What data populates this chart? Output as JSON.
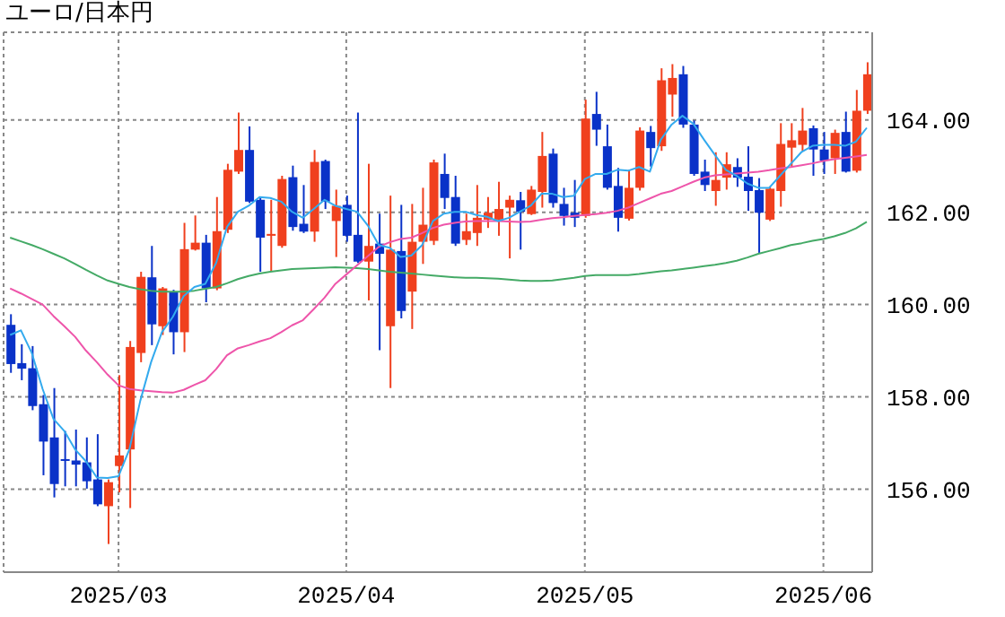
{
  "chart_data": {
    "type": "candlestick",
    "title": "ユーロ/日本円",
    "categories": [
      null,
      null,
      null,
      null,
      null,
      null,
      null,
      null,
      null,
      null,
      "2025/03",
      null,
      null,
      null,
      null,
      null,
      null,
      null,
      null,
      null,
      null,
      null,
      null,
      null,
      null,
      null,
      null,
      null,
      null,
      null,
      null,
      "2025/04",
      null,
      null,
      null,
      null,
      null,
      null,
      null,
      null,
      null,
      null,
      null,
      null,
      null,
      null,
      null,
      null,
      null,
      null,
      null,
      null,
      null,
      "2025/05",
      null,
      null,
      null,
      null,
      null,
      null,
      null,
      null,
      null,
      null,
      null,
      null,
      null,
      null,
      null,
      null,
      null,
      null,
      null,
      null,
      null,
      "2025/06",
      null,
      null,
      null,
      null
    ],
    "ohlc": [
      [
        159.56,
        159.79,
        158.52,
        158.71
      ],
      [
        158.73,
        159.14,
        158.36,
        158.61
      ],
      [
        158.62,
        159.1,
        157.71,
        157.8
      ],
      [
        157.84,
        158.04,
        156.3,
        157.03
      ],
      [
        157.12,
        158.19,
        155.82,
        156.11
      ],
      [
        156.65,
        157.26,
        156.06,
        156.62
      ],
      [
        156.62,
        157.29,
        156.06,
        156.53
      ],
      [
        156.58,
        157.12,
        156.01,
        156.17
      ],
      [
        156.21,
        157.19,
        155.63,
        155.67
      ],
      [
        155.63,
        156.21,
        154.81,
        156.15
      ],
      [
        156.5,
        158.47,
        155.93,
        156.73
      ],
      [
        156.86,
        159.21,
        155.59,
        159.08
      ],
      [
        158.95,
        160.71,
        158.75,
        160.6
      ],
      [
        160.59,
        161.27,
        159.12,
        159.57
      ],
      [
        159.53,
        160.38,
        159.34,
        160.35
      ],
      [
        160.28,
        160.32,
        158.92,
        159.4
      ],
      [
        159.4,
        161.77,
        158.97,
        161.2
      ],
      [
        161.19,
        161.93,
        161.17,
        161.34
      ],
      [
        161.34,
        161.51,
        160.05,
        160.35
      ],
      [
        160.35,
        162.33,
        160.31,
        161.59
      ],
      [
        161.62,
        163.05,
        161.55,
        162.92
      ],
      [
        162.88,
        164.16,
        162.83,
        163.35
      ],
      [
        163.35,
        163.86,
        162.2,
        162.23
      ],
      [
        162.27,
        162.33,
        160.71,
        161.45
      ],
      [
        161.49,
        162.27,
        160.73,
        161.53
      ],
      [
        161.27,
        162.79,
        161.23,
        162.72
      ],
      [
        162.76,
        163.01,
        161.6,
        161.68
      ],
      [
        161.75,
        162.59,
        161.55,
        161.58
      ],
      [
        161.58,
        163.35,
        161.36,
        163.09
      ],
      [
        163.11,
        163.14,
        162.07,
        162.23
      ],
      [
        161.81,
        162.49,
        161.03,
        162.14
      ],
      [
        162.16,
        162.36,
        161.36,
        161.49
      ],
      [
        161.51,
        164.16,
        160.9,
        160.93
      ],
      [
        160.93,
        163.05,
        160.09,
        161.27
      ],
      [
        161.32,
        161.97,
        159.01,
        161.1
      ],
      [
        159.53,
        162.36,
        158.19,
        161.19
      ],
      [
        161.16,
        162.16,
        159.7,
        159.86
      ],
      [
        160.28,
        162.18,
        159.47,
        161.36
      ],
      [
        161.36,
        162.53,
        160.88,
        161.73
      ],
      [
        161.38,
        163.14,
        161.29,
        163.08
      ],
      [
        162.83,
        163.27,
        162.07,
        162.31
      ],
      [
        162.33,
        162.79,
        161.27,
        161.32
      ],
      [
        161.4,
        161.97,
        161.29,
        161.59
      ],
      [
        161.55,
        162.59,
        161.27,
        161.88
      ],
      [
        161.84,
        162.33,
        161.66,
        161.99
      ],
      [
        161.84,
        162.66,
        161.49,
        162.07
      ],
      [
        162.1,
        162.36,
        161.0,
        162.27
      ],
      [
        162.26,
        162.44,
        161.19,
        162.01
      ],
      [
        161.96,
        162.57,
        161.94,
        162.49
      ],
      [
        162.44,
        163.74,
        162.1,
        163.22
      ],
      [
        163.27,
        163.38,
        162.1,
        162.2
      ],
      [
        162.18,
        162.53,
        161.71,
        161.92
      ],
      [
        161.99,
        162.7,
        161.68,
        161.88
      ],
      [
        161.92,
        164.44,
        161.88,
        164.03
      ],
      [
        164.13,
        164.61,
        163.44,
        163.79
      ],
      [
        163.43,
        163.9,
        162.49,
        162.53
      ],
      [
        162.57,
        162.96,
        161.58,
        161.88
      ],
      [
        161.86,
        162.92,
        161.82,
        162.53
      ],
      [
        162.53,
        163.84,
        162.47,
        163.77
      ],
      [
        163.74,
        163.87,
        162.99,
        163.39
      ],
      [
        163.43,
        165.12,
        163.33,
        164.86
      ],
      [
        164.55,
        165.21,
        164.07,
        164.91
      ],
      [
        164.99,
        165.17,
        163.83,
        163.9
      ],
      [
        163.9,
        163.99,
        162.79,
        162.83
      ],
      [
        162.88,
        163.14,
        162.46,
        162.59
      ],
      [
        162.46,
        163.3,
        162.14,
        162.7
      ],
      [
        162.75,
        163.3,
        162.49,
        163.04
      ],
      [
        162.98,
        163.17,
        162.55,
        162.75
      ],
      [
        162.77,
        163.43,
        162.03,
        162.46
      ],
      [
        162.48,
        162.74,
        161.12,
        161.99
      ],
      [
        161.84,
        162.56,
        161.81,
        162.51
      ],
      [
        162.46,
        163.93,
        162.12,
        163.48
      ],
      [
        163.4,
        163.93,
        162.98,
        163.56
      ],
      [
        163.46,
        164.26,
        163.33,
        163.77
      ],
      [
        163.82,
        163.88,
        162.79,
        163.36
      ],
      [
        163.36,
        163.74,
        162.83,
        163.12
      ],
      [
        163.17,
        163.79,
        162.83,
        163.72
      ],
      [
        163.74,
        164.18,
        162.86,
        162.88
      ],
      [
        162.9,
        164.65,
        162.86,
        164.2
      ],
      [
        164.2,
        165.25,
        164.13,
        164.99
      ]
    ],
    "colors": [
      "#0a32c8",
      "#0a32c8",
      "#0a32c8",
      "#0a32c8",
      "#0a32c8",
      "#0a32c8",
      "#0a32c8",
      "#0a32c8",
      "#0a32c8",
      "#f0401e",
      "#f0401e",
      "#f0401e",
      "#f0401e",
      "#0a32c8",
      "#f0401e",
      "#0a32c8",
      "#f0401e",
      "#f0401e",
      "#0a32c8",
      "#f0401e",
      "#f0401e",
      "#f0401e",
      "#0a32c8",
      "#0a32c8",
      "#f0401e",
      "#f0401e",
      "#0a32c8",
      "#0a32c8",
      "#f0401e",
      "#0a32c8",
      "#f0401e",
      "#0a32c8",
      "#0a32c8",
      "#f0401e",
      "#0a32c8",
      "#f0401e",
      "#0a32c8",
      "#f0401e",
      "#f0401e",
      "#f0401e",
      "#0a32c8",
      "#0a32c8",
      "#f0401e",
      "#f0401e",
      "#f0401e",
      "#f0401e",
      "#f0401e",
      "#0a32c8",
      "#f0401e",
      "#f0401e",
      "#0a32c8",
      "#0a32c8",
      "#0a32c8",
      "#f0401e",
      "#0a32c8",
      "#0a32c8",
      "#0a32c8",
      "#f0401e",
      "#f0401e",
      "#0a32c8",
      "#f0401e",
      "#f0401e",
      "#0a32c8",
      "#0a32c8",
      "#0a32c8",
      "#f0401e",
      "#f0401e",
      "#0a32c8",
      "#0a32c8",
      "#0a32c8",
      "#f0401e",
      "#f0401e",
      "#f0401e",
      "#f0401e",
      "#0a32c8",
      "#0a32c8",
      "#f0401e",
      "#0a32c8",
      "#f0401e",
      "#f0401e"
    ],
    "series": [
      {
        "type": "line",
        "color": "#44aa66",
        "values": [
          161.45,
          161.37,
          161.29,
          161.2,
          161.1,
          161.0,
          160.88,
          160.75,
          160.63,
          160.52,
          160.45,
          160.38,
          160.33,
          160.3,
          160.28,
          160.28,
          160.28,
          160.3,
          160.34,
          160.38,
          160.46,
          160.55,
          160.62,
          160.67,
          160.71,
          160.74,
          160.77,
          160.78,
          160.79,
          160.8,
          160.81,
          160.8,
          160.79,
          160.77,
          160.74,
          160.71,
          160.69,
          160.67,
          160.65,
          160.63,
          160.61,
          160.59,
          160.58,
          160.58,
          160.57,
          160.56,
          160.54,
          160.52,
          160.51,
          160.51,
          160.52,
          160.55,
          160.58,
          160.62,
          160.64,
          160.64,
          160.64,
          160.64,
          160.66,
          160.69,
          160.72,
          160.74,
          160.77,
          160.8,
          160.83,
          160.86,
          160.9,
          160.95,
          161.02,
          161.1,
          161.16,
          161.22,
          161.29,
          161.33,
          161.38,
          161.42,
          161.48,
          161.55,
          161.65,
          161.79
        ]
      },
      {
        "type": "line",
        "color": "#ee55aa",
        "values": [
          160.35,
          160.24,
          160.12,
          160.0,
          159.75,
          159.53,
          159.3,
          159.0,
          158.75,
          158.48,
          158.25,
          158.17,
          158.14,
          158.12,
          158.1,
          158.09,
          158.15,
          158.26,
          158.36,
          158.6,
          158.9,
          159.05,
          159.12,
          159.2,
          159.27,
          159.4,
          159.55,
          159.66,
          159.9,
          160.15,
          160.45,
          160.65,
          160.85,
          161.05,
          161.25,
          161.35,
          161.42,
          161.45,
          161.55,
          161.66,
          161.73,
          161.77,
          161.8,
          161.81,
          161.81,
          161.81,
          161.8,
          161.79,
          161.8,
          161.84,
          161.87,
          161.89,
          161.92,
          161.94,
          161.96,
          161.99,
          162.03,
          162.1,
          162.2,
          162.3,
          162.4,
          162.46,
          162.56,
          162.66,
          162.75,
          162.8,
          162.82,
          162.84,
          162.86,
          162.88,
          162.91,
          162.95,
          162.98,
          163.02,
          163.06,
          163.11,
          163.15,
          163.18,
          163.21,
          163.24
        ]
      },
      {
        "type": "line",
        "color": "#33aaee",
        "values": [
          159.34,
          159.44,
          158.95,
          158.17,
          157.52,
          157.26,
          156.86,
          156.6,
          156.25,
          156.24,
          156.28,
          156.86,
          157.91,
          158.75,
          159.4,
          159.73,
          160.18,
          160.38,
          160.45,
          160.9,
          161.68,
          162.01,
          162.14,
          162.33,
          162.31,
          162.23,
          162.01,
          161.88,
          162.07,
          162.27,
          162.14,
          162.07,
          162.01,
          161.71,
          161.29,
          161.23,
          161.03,
          161.06,
          161.29,
          161.81,
          161.97,
          162.01,
          162.01,
          161.94,
          161.9,
          161.81,
          161.88,
          162.01,
          162.14,
          162.4,
          162.4,
          162.33,
          162.36,
          162.72,
          162.83,
          162.83,
          162.92,
          162.9,
          162.98,
          162.88,
          163.57,
          163.9,
          164.09,
          163.92,
          163.57,
          163.24,
          162.92,
          162.79,
          162.62,
          162.53,
          162.53,
          162.79,
          163.05,
          163.31,
          163.44,
          163.46,
          163.46,
          163.44,
          163.53,
          163.83
        ]
      }
    ],
    "ylim": [
      154.2,
      165.9
    ],
    "yticks": [
      {
        "value": 156,
        "label": "156.00"
      },
      {
        "value": 158,
        "label": "158.00"
      },
      {
        "value": 160,
        "label": "160.00"
      },
      {
        "value": 162,
        "label": "162.00"
      },
      {
        "value": 164,
        "label": "164.00"
      }
    ],
    "grid": true
  }
}
